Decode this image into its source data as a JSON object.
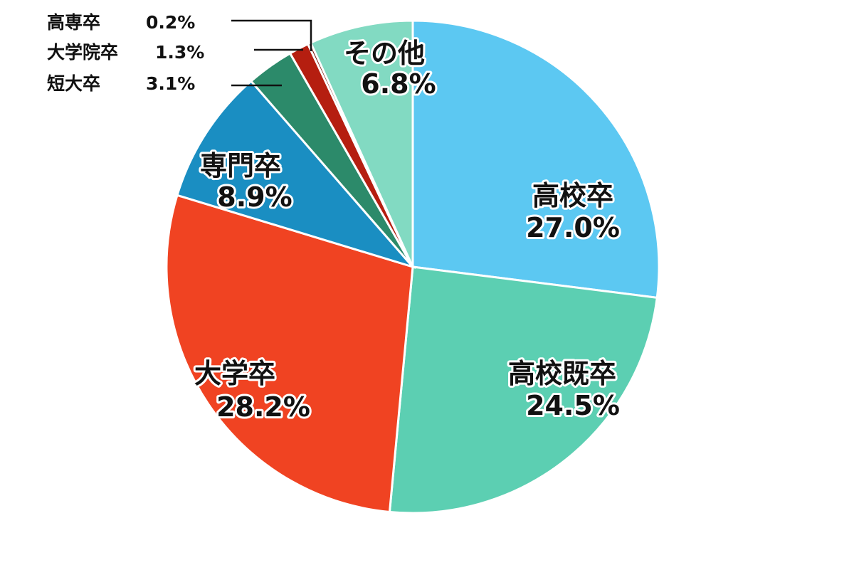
{
  "chart_data": {
    "type": "pie",
    "start": "top",
    "direction": "clockwise",
    "slices": [
      {
        "label": "高校卒",
        "value": 27.0,
        "display": "27.0%",
        "color": "#5cc8f2",
        "label_position": "inside"
      },
      {
        "label": "高校既卒",
        "value": 24.5,
        "display": "24.5%",
        "color": "#5ccfb2",
        "label_position": "inside"
      },
      {
        "label": "大学卒",
        "value": 28.2,
        "display": "28.2%",
        "color": "#f04322",
        "label_position": "inside"
      },
      {
        "label": "専門卒",
        "value": 8.9,
        "display": "8.9%",
        "color": "#1a8ec2",
        "label_position": "inside"
      },
      {
        "label": "短大卒",
        "value": 3.1,
        "display": "3.1%",
        "color": "#2c8a6a",
        "label_position": "outside"
      },
      {
        "label": "大学院卒",
        "value": 1.3,
        "display": "1.3%",
        "color": "#b51e10",
        "label_position": "outside"
      },
      {
        "label": "高専卒",
        "value": 0.2,
        "display": "0.2%",
        "color": "#7a1a10",
        "label_position": "outside"
      },
      {
        "label": "その他",
        "value": 6.8,
        "display": "6.8%",
        "color": "#82dac2",
        "label_position": "inside"
      }
    ]
  }
}
